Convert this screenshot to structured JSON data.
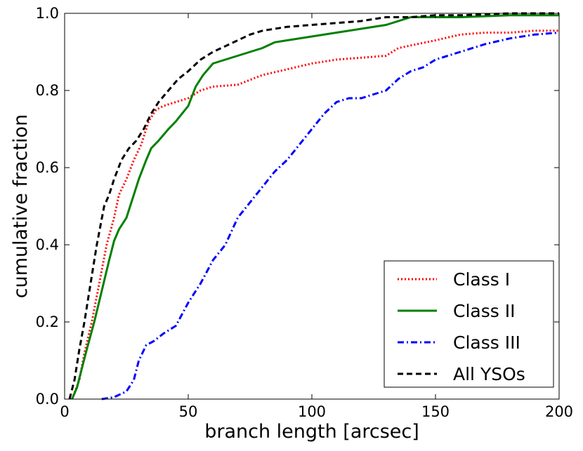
{
  "chart_data": {
    "type": "line",
    "title": "",
    "xlabel": "branch length [arcsec]",
    "ylabel": "cumulative fraction",
    "xlim": [
      0,
      200
    ],
    "ylim": [
      0,
      1
    ],
    "xticks": [
      0,
      50,
      100,
      150,
      200
    ],
    "xtick_labels": [
      "0",
      "50",
      "100",
      "150",
      "200"
    ],
    "yticks": [
      0,
      0.2,
      0.4,
      0.6,
      0.8,
      1.0
    ],
    "ytick_labels": [
      "0.0",
      "0.2",
      "0.4",
      "0.6",
      "0.8",
      "1.0"
    ],
    "grid": false,
    "legend_position": "bottom-right",
    "series": [
      {
        "name": "Class I",
        "color": "#ff0000",
        "style": "dotted",
        "x": [
          3,
          6,
          8,
          11,
          14,
          17,
          20,
          22,
          25,
          28,
          31,
          34,
          37,
          40,
          45,
          50,
          55,
          60,
          70,
          76,
          80,
          90,
          100,
          110,
          120,
          130,
          135,
          150,
          160,
          170,
          180,
          190,
          200
        ],
        "y": [
          0.0,
          0.05,
          0.12,
          0.2,
          0.3,
          0.4,
          0.47,
          0.53,
          0.57,
          0.62,
          0.66,
          0.72,
          0.75,
          0.76,
          0.77,
          0.78,
          0.8,
          0.81,
          0.815,
          0.83,
          0.84,
          0.855,
          0.87,
          0.88,
          0.885,
          0.89,
          0.91,
          0.93,
          0.945,
          0.95,
          0.95,
          0.955,
          0.955
        ]
      },
      {
        "name": "Class II",
        "color": "#008000",
        "style": "solid",
        "x": [
          3,
          5,
          7,
          9,
          12,
          15,
          18,
          20,
          22,
          25,
          28,
          30,
          33,
          35,
          38,
          42,
          45,
          50,
          53,
          56,
          60,
          65,
          70,
          75,
          80,
          85,
          90,
          100,
          110,
          120,
          130,
          135,
          140,
          150,
          160,
          180,
          200
        ],
        "y": [
          0.0,
          0.03,
          0.08,
          0.13,
          0.2,
          0.28,
          0.36,
          0.41,
          0.44,
          0.47,
          0.53,
          0.57,
          0.62,
          0.65,
          0.67,
          0.7,
          0.72,
          0.76,
          0.81,
          0.84,
          0.87,
          0.88,
          0.89,
          0.9,
          0.91,
          0.925,
          0.93,
          0.94,
          0.95,
          0.96,
          0.97,
          0.98,
          0.99,
          0.99,
          0.99,
          0.995,
          0.995
        ]
      },
      {
        "name": "Class III",
        "color": "#0000ff",
        "style": "dashdot",
        "x": [
          15,
          20,
          25,
          28,
          30,
          33,
          36,
          40,
          45,
          50,
          55,
          60,
          65,
          70,
          75,
          80,
          85,
          90,
          95,
          100,
          105,
          110,
          115,
          120,
          125,
          130,
          135,
          140,
          145,
          150,
          160,
          170,
          180,
          190,
          200
        ],
        "y": [
          0.0,
          0.005,
          0.02,
          0.05,
          0.1,
          0.14,
          0.15,
          0.17,
          0.19,
          0.25,
          0.3,
          0.36,
          0.4,
          0.47,
          0.51,
          0.55,
          0.59,
          0.62,
          0.66,
          0.7,
          0.74,
          0.77,
          0.78,
          0.78,
          0.79,
          0.8,
          0.83,
          0.85,
          0.86,
          0.88,
          0.9,
          0.92,
          0.935,
          0.945,
          0.95
        ]
      },
      {
        "name": "All YSOs",
        "color": "#000000",
        "style": "dashed",
        "x": [
          2,
          4,
          6,
          8,
          10,
          13,
          16,
          18,
          20,
          23,
          26,
          29,
          32,
          35,
          38,
          42,
          46,
          50,
          55,
          60,
          65,
          70,
          75,
          80,
          90,
          100,
          110,
          120,
          130,
          140,
          150,
          160,
          180,
          200
        ],
        "y": [
          0.0,
          0.05,
          0.13,
          0.2,
          0.28,
          0.4,
          0.5,
          0.53,
          0.57,
          0.62,
          0.65,
          0.67,
          0.7,
          0.74,
          0.77,
          0.8,
          0.83,
          0.85,
          0.88,
          0.9,
          0.915,
          0.93,
          0.945,
          0.955,
          0.965,
          0.97,
          0.975,
          0.98,
          0.99,
          0.99,
          0.995,
          0.995,
          1.0,
          1.0
        ]
      }
    ]
  }
}
